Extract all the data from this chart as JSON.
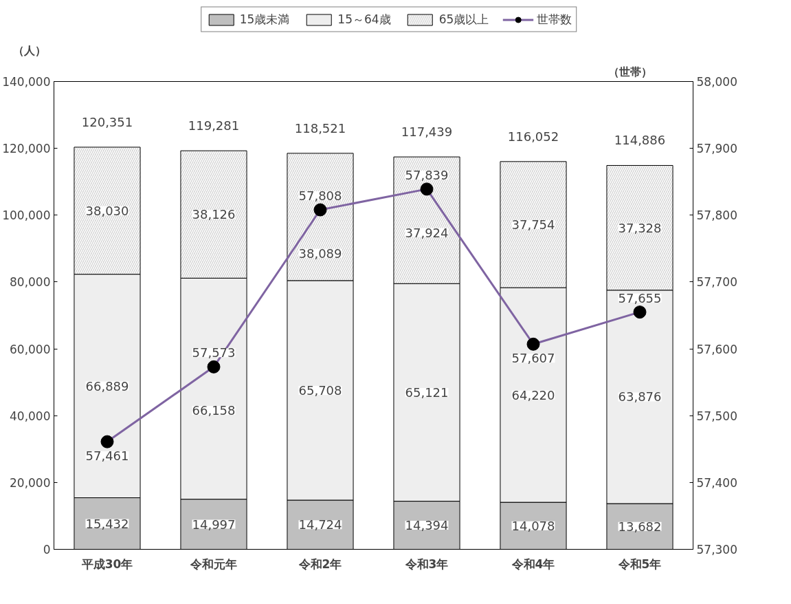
{
  "chart_data": {
    "type": "bar",
    "stacked": true,
    "categories": [
      "平成30年",
      "令和元年",
      "令和2年",
      "令和3年",
      "令和4年",
      "令和5年"
    ],
    "ylabel": "（人）",
    "y2label": "（世帯）",
    "series": [
      {
        "name": "15歳未満",
        "color": "#bfbfbf",
        "values": [
          15432,
          14997,
          14724,
          14394,
          14078,
          13682
        ],
        "value_labels": [
          "15,432",
          "14,997",
          "14,724",
          "14,394",
          "14,078",
          "13,682"
        ]
      },
      {
        "name": "15～64歳",
        "color": "#eeeeee",
        "values": [
          66889,
          66158,
          65708,
          65121,
          64220,
          63876
        ],
        "value_labels": [
          "66,889",
          "66,158",
          "65,708",
          "65,121",
          "64,220",
          "63,876"
        ]
      },
      {
        "name": "65歳以上",
        "color": "#d0d0d0",
        "values": [
          38030,
          38126,
          38089,
          37924,
          37754,
          37328
        ],
        "value_labels": [
          "38,030",
          "38,126",
          "38,089",
          "37,924",
          "37,754",
          "37,328"
        ]
      },
      {
        "name": "世帯数",
        "type": "line",
        "axis": "y2",
        "color": "#7f64a2",
        "marker": "circle",
        "values": [
          57461,
          57573,
          57808,
          57839,
          57607,
          57655
        ],
        "value_labels": [
          "57,461",
          "57,573",
          "57,808",
          "57,839",
          "57,607",
          "57,655"
        ]
      }
    ],
    "totals": [
      "120,351",
      "119,281",
      "118,521",
      "117,439",
      "116,052",
      "114,886"
    ],
    "legend": "top",
    "grid": false,
    "ylim": [
      0,
      140000
    ],
    "yticks": [
      {
        "value": 0,
        "label": "0"
      },
      {
        "value": 20000,
        "label": "20,000"
      },
      {
        "value": 40000,
        "label": "40,000"
      },
      {
        "value": 60000,
        "label": "60,000"
      },
      {
        "value": 80000,
        "label": "80,000"
      },
      {
        "value": 100000,
        "label": "100,000"
      },
      {
        "value": 120000,
        "label": "120,000"
      },
      {
        "value": 140000,
        "label": "140,000"
      }
    ],
    "y2lim": [
      57300,
      58000
    ],
    "y2ticks": [
      {
        "value": 57300,
        "label": "57,300"
      },
      {
        "value": 57400,
        "label": "57,400"
      },
      {
        "value": 57500,
        "label": "57,500"
      },
      {
        "value": 57600,
        "label": "57,600"
      },
      {
        "value": 57700,
        "label": "57,700"
      },
      {
        "value": 57800,
        "label": "57,800"
      },
      {
        "value": 57900,
        "label": "57,900"
      },
      {
        "value": 58000,
        "label": "58,000"
      }
    ]
  }
}
